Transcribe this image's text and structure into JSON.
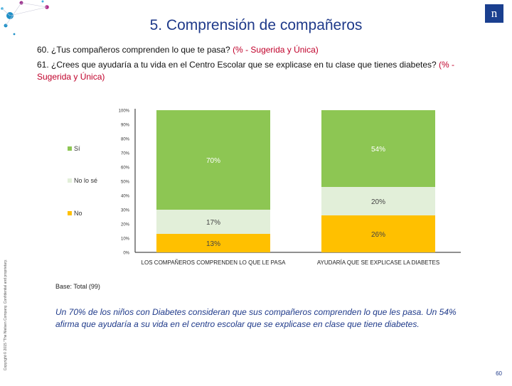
{
  "slide": {
    "title": "5. Comprensión de compañeros",
    "q1_main": "60. ¿Tus compañeros comprenden lo que te pasa? ",
    "q1_hl": "(% - Sugerida y Única)",
    "q2_main": "61. ¿Crees que ayudaría a tu vida en el Centro Escolar que se explicase en tu clase que tienes diabetes? ",
    "q2_hl": "(% - Sugerida y Única)",
    "base": "Base: Total  (99)",
    "conclusion": "Un 70% de los niños con Diabetes consideran que sus compañeros comprenden lo que les pasa. Un 54% afirma que ayudaría a su vida en el centro escolar que se explicase en clase que tiene diabetes.",
    "page_number": "60",
    "side_text": "Copyright © 2015 \"The Nielsen Company. Confidential and proprietary.",
    "logo_text": "n"
  },
  "colors": {
    "si": "#8dc653",
    "nolose": "#e2efd9",
    "no": "#ffc000",
    "title": "#1f3a8a",
    "highlight": "#c0002a"
  },
  "chart_data": {
    "type": "bar",
    "stacked": true,
    "categories": [
      "LOS COMPAÑEROS COMPRENDEN LO QUE LE PASA",
      "AYUDARÍA QUE SE EXPLICASE LA DIABETES"
    ],
    "series": [
      {
        "name": "No",
        "values": [
          13,
          26
        ],
        "labels": [
          "13%",
          "26%"
        ]
      },
      {
        "name": "No lo sé",
        "values": [
          17,
          20
        ],
        "labels": [
          "17%",
          "20%"
        ]
      },
      {
        "name": "Sí",
        "values": [
          70,
          54
        ],
        "labels": [
          "70%",
          "54%"
        ]
      }
    ],
    "legend_order": [
      "Sí",
      "No lo sé",
      "No"
    ],
    "yticks": [
      "0%",
      "10%",
      "20%",
      "30%",
      "40%",
      "50%",
      "60%",
      "70%",
      "80%",
      "90%",
      "100%"
    ],
    "ylim": [
      0,
      100
    ],
    "legend_position": "left"
  }
}
